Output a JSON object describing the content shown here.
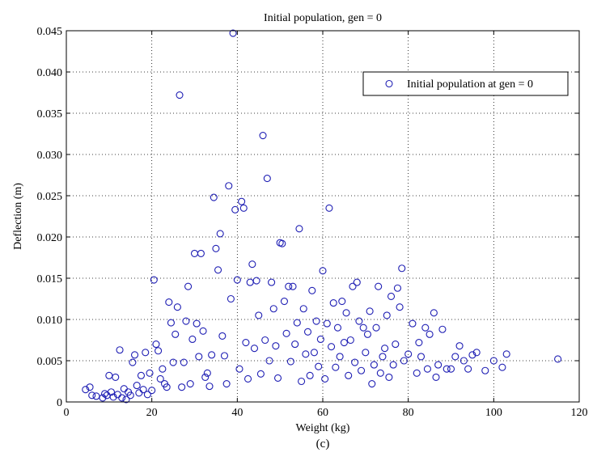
{
  "chart_data": {
    "type": "scatter",
    "title": "Initial population, gen = 0",
    "xlabel": "Weight (kg)",
    "ylabel": "Deflection (m)",
    "xlim": [
      0,
      120
    ],
    "ylim": [
      0,
      0.045
    ],
    "xticks": [
      "0",
      "20",
      "40",
      "60",
      "80",
      "100",
      "120"
    ],
    "yticks": [
      "0",
      "0.005",
      "0.010",
      "0.015",
      "0.020",
      "0.025",
      "0.030",
      "0.035",
      "0.040",
      "0.045"
    ],
    "grid": true,
    "legend_position": "top-right",
    "marker_color": "#1f1fb4",
    "series": [
      {
        "name": "Initial population at gen = 0",
        "marker": "circle",
        "points": [
          [
            4.5,
            0.0015
          ],
          [
            5.5,
            0.0018
          ],
          [
            6,
            0.0008
          ],
          [
            7,
            0.0007
          ],
          [
            8.5,
            0.0005
          ],
          [
            9,
            0.001
          ],
          [
            9.5,
            0.0008
          ],
          [
            10,
            0.0032
          ],
          [
            10.5,
            0.0012
          ],
          [
            11,
            0.0006
          ],
          [
            11.5,
            0.003
          ],
          [
            12,
            0.0009
          ],
          [
            12.5,
            0.0063
          ],
          [
            13,
            0.0005
          ],
          [
            13.5,
            0.0016
          ],
          [
            14,
            0.0003
          ],
          [
            14.5,
            0.0012
          ],
          [
            15,
            0.0008
          ],
          [
            15.5,
            0.0048
          ],
          [
            16,
            0.0057
          ],
          [
            16.5,
            0.002
          ],
          [
            17,
            0.0011
          ],
          [
            17.5,
            0.0032
          ],
          [
            18,
            0.0015
          ],
          [
            18.5,
            0.006
          ],
          [
            19,
            0.0009
          ],
          [
            19.5,
            0.0035
          ],
          [
            20,
            0.0014
          ],
          [
            20.5,
            0.0148
          ],
          [
            21,
            0.007
          ],
          [
            21.5,
            0.0062
          ],
          [
            22,
            0.0028
          ],
          [
            22.5,
            0.004
          ],
          [
            23,
            0.0022
          ],
          [
            23.5,
            0.0018
          ],
          [
            24,
            0.0121
          ],
          [
            24.5,
            0.0096
          ],
          [
            25,
            0.0048
          ],
          [
            25.5,
            0.0082
          ],
          [
            26,
            0.0115
          ],
          [
            26.5,
            0.0372
          ],
          [
            27,
            0.0018
          ],
          [
            27.5,
            0.0048
          ],
          [
            28,
            0.0098
          ],
          [
            28.5,
            0.014
          ],
          [
            29,
            0.0022
          ],
          [
            29.5,
            0.0076
          ],
          [
            30,
            0.018
          ],
          [
            30.5,
            0.0095
          ],
          [
            31,
            0.0055
          ],
          [
            31.5,
            0.018
          ],
          [
            32,
            0.0086
          ],
          [
            32.5,
            0.003
          ],
          [
            33,
            0.0035
          ],
          [
            33.5,
            0.0019
          ],
          [
            34,
            0.0057
          ],
          [
            34.5,
            0.0248
          ],
          [
            35,
            0.0186
          ],
          [
            35.5,
            0.016
          ],
          [
            36,
            0.0204
          ],
          [
            36.5,
            0.008
          ],
          [
            37,
            0.0056
          ],
          [
            37.5,
            0.0022
          ],
          [
            38,
            0.0262
          ],
          [
            38.5,
            0.0125
          ],
          [
            39,
            0.0447
          ],
          [
            39.5,
            0.0233
          ],
          [
            40,
            0.0148
          ],
          [
            40.5,
            0.004
          ],
          [
            41,
            0.0243
          ],
          [
            41.5,
            0.0235
          ],
          [
            42,
            0.0072
          ],
          [
            42.5,
            0.0028
          ],
          [
            43,
            0.0145
          ],
          [
            43.5,
            0.0167
          ],
          [
            44,
            0.0065
          ],
          [
            44.5,
            0.0147
          ],
          [
            45,
            0.0105
          ],
          [
            45.5,
            0.0034
          ],
          [
            46,
            0.0323
          ],
          [
            46.5,
            0.0075
          ],
          [
            47,
            0.0271
          ],
          [
            47.5,
            0.005
          ],
          [
            48,
            0.0145
          ],
          [
            48.5,
            0.0113
          ],
          [
            49,
            0.0068
          ],
          [
            49.5,
            0.0029
          ],
          [
            50,
            0.0193
          ],
          [
            50.5,
            0.0192
          ],
          [
            51,
            0.0122
          ],
          [
            51.5,
            0.0083
          ],
          [
            52,
            0.014
          ],
          [
            52.5,
            0.0049
          ],
          [
            53,
            0.014
          ],
          [
            53.5,
            0.007
          ],
          [
            54,
            0.0096
          ],
          [
            54.5,
            0.021
          ],
          [
            55,
            0.0025
          ],
          [
            55.5,
            0.0113
          ],
          [
            56,
            0.0058
          ],
          [
            56.5,
            0.0085
          ],
          [
            57,
            0.0032
          ],
          [
            57.5,
            0.0135
          ],
          [
            58,
            0.006
          ],
          [
            58.5,
            0.0098
          ],
          [
            59,
            0.0043
          ],
          [
            59.5,
            0.0076
          ],
          [
            60,
            0.0159
          ],
          [
            60.5,
            0.0028
          ],
          [
            61,
            0.0095
          ],
          [
            61.5,
            0.0235
          ],
          [
            62,
            0.0067
          ],
          [
            62.5,
            0.012
          ],
          [
            63,
            0.0042
          ],
          [
            63.5,
            0.009
          ],
          [
            64,
            0.0055
          ],
          [
            64.5,
            0.0122
          ],
          [
            65,
            0.0072
          ],
          [
            65.5,
            0.0108
          ],
          [
            66,
            0.0032
          ],
          [
            66.5,
            0.0075
          ],
          [
            67,
            0.014
          ],
          [
            67.5,
            0.0048
          ],
          [
            68,
            0.0145
          ],
          [
            68.5,
            0.0098
          ],
          [
            69,
            0.0038
          ],
          [
            69.5,
            0.009
          ],
          [
            70,
            0.006
          ],
          [
            70.5,
            0.0082
          ],
          [
            71,
            0.011
          ],
          [
            71.5,
            0.0022
          ],
          [
            72,
            0.0045
          ],
          [
            72.5,
            0.009
          ],
          [
            73,
            0.014
          ],
          [
            73.5,
            0.0035
          ],
          [
            74,
            0.0055
          ],
          [
            74.5,
            0.0065
          ],
          [
            75,
            0.0105
          ],
          [
            75.5,
            0.003
          ],
          [
            76,
            0.0128
          ],
          [
            76.5,
            0.0045
          ],
          [
            77,
            0.007
          ],
          [
            77.5,
            0.0138
          ],
          [
            78,
            0.0115
          ],
          [
            78.5,
            0.0162
          ],
          [
            79,
            0.005
          ],
          [
            80,
            0.0058
          ],
          [
            81,
            0.0095
          ],
          [
            82,
            0.0035
          ],
          [
            82.5,
            0.0072
          ],
          [
            83,
            0.0055
          ],
          [
            84,
            0.009
          ],
          [
            84.5,
            0.004
          ],
          [
            85,
            0.0082
          ],
          [
            86,
            0.0108
          ],
          [
            86.5,
            0.003
          ],
          [
            87,
            0.0045
          ],
          [
            88,
            0.0088
          ],
          [
            89,
            0.004
          ],
          [
            90,
            0.004
          ],
          [
            91,
            0.0055
          ],
          [
            92,
            0.0068
          ],
          [
            93,
            0.005
          ],
          [
            94,
            0.004
          ],
          [
            95,
            0.0057
          ],
          [
            96,
            0.006
          ],
          [
            98,
            0.0038
          ],
          [
            100,
            0.005
          ],
          [
            102,
            0.0042
          ],
          [
            103,
            0.0058
          ],
          [
            115,
            0.0052
          ]
        ]
      }
    ]
  },
  "caption": "(c)"
}
